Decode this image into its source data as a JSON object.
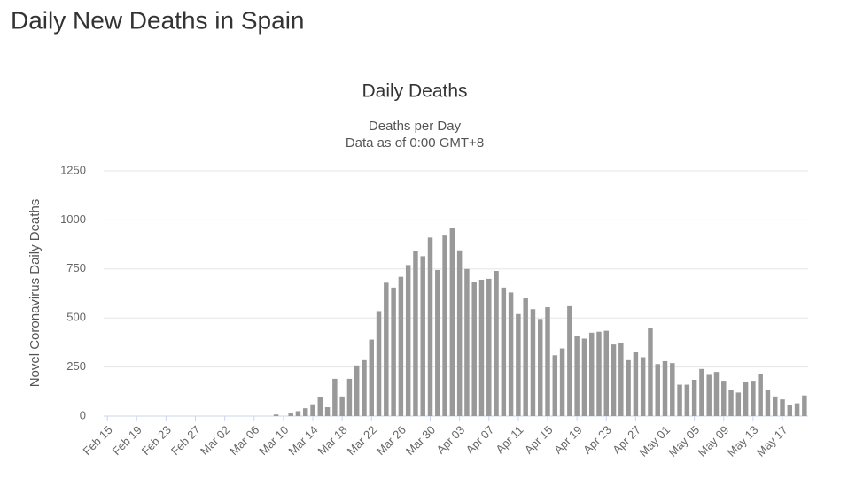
{
  "page_title": "Daily New Deaths in Spain",
  "chart_data": {
    "type": "bar",
    "title": "Daily Deaths",
    "subtitle": [
      "Deaths per Day",
      "Data as of 0:00 GMT+8"
    ],
    "y_label": "Novel Coronavirus Daily Deaths",
    "color": "#999999",
    "categories": [
      "Feb 15",
      null,
      null,
      null,
      "Feb 19",
      null,
      null,
      null,
      "Feb 23",
      null,
      null,
      null,
      "Feb 27",
      null,
      null,
      null,
      "Mar 02",
      null,
      null,
      null,
      "Mar 06",
      null,
      null,
      null,
      "Mar 10",
      null,
      null,
      null,
      "Mar 14",
      null,
      null,
      null,
      "Mar 18",
      null,
      null,
      null,
      "Mar 22",
      null,
      null,
      null,
      "Mar 26",
      null,
      null,
      null,
      "Mar 30",
      null,
      null,
      null,
      "Apr 03",
      null,
      null,
      null,
      "Apr 07",
      null,
      null,
      null,
      "Apr 11",
      null,
      null,
      null,
      "Apr 15",
      null,
      null,
      null,
      "Apr 19",
      null,
      null,
      null,
      "Apr 23",
      null,
      null,
      null,
      "Apr 27",
      null,
      null,
      null,
      "May 01",
      null,
      null,
      null,
      "May 05",
      null,
      null,
      null,
      "May 09",
      null,
      null,
      null,
      "May 13",
      null,
      null,
      null,
      "May 17",
      null,
      null,
      null
    ],
    "values": [
      0,
      0,
      0,
      0,
      0,
      0,
      0,
      0,
      0,
      0,
      0,
      0,
      0,
      0,
      0,
      0,
      0,
      0,
      0,
      0,
      0,
      0,
      0,
      8,
      0,
      15,
      25,
      40,
      60,
      95,
      45,
      190,
      100,
      190,
      258,
      285,
      390,
      535,
      680,
      655,
      710,
      770,
      840,
      815,
      910,
      745,
      920,
      960,
      845,
      750,
      685,
      695,
      700,
      740,
      655,
      630,
      520,
      600,
      545,
      495,
      555,
      310,
      345,
      560,
      410,
      395,
      425,
      430,
      435,
      365,
      370,
      285,
      325,
      300,
      450,
      265,
      280,
      270,
      160,
      160,
      185,
      240,
      210,
      225,
      180,
      135,
      120,
      175,
      180,
      215,
      135,
      100,
      85,
      55,
      65,
      105
    ],
    "ylim": [
      0,
      1250
    ],
    "yticks": [
      0,
      250,
      500,
      750,
      1000,
      1250
    ],
    "grid": true
  }
}
